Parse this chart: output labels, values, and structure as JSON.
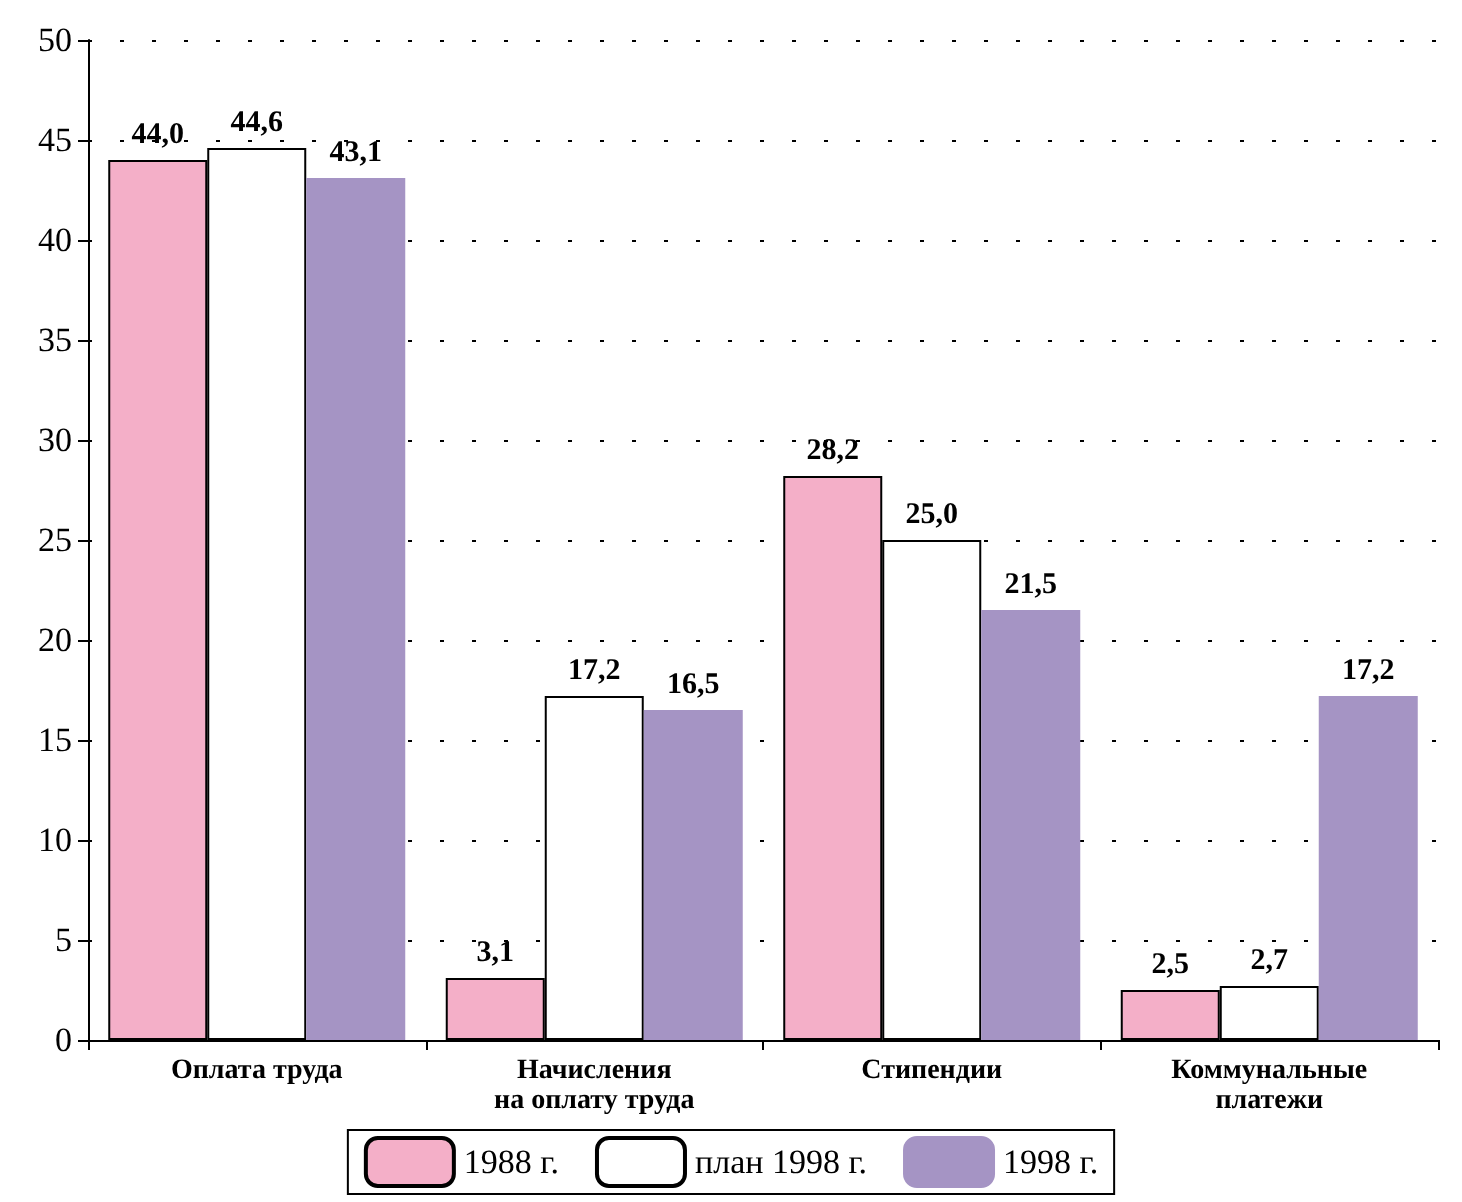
{
  "chart_data": {
    "type": "bar",
    "categories": [
      "Оплата труда",
      "Начисления\nна оплату труда",
      "Стипендии",
      "Коммунальные\nплатежи"
    ],
    "series": [
      {
        "name": "1988 г.",
        "color": "#f4afc8",
        "values": [
          44.0,
          3.1,
          28.2,
          2.5
        ],
        "value_labels": [
          "44,0",
          "3,1",
          "28,2",
          "2,5"
        ]
      },
      {
        "name": "план 1998 г.",
        "color": "#ffffff",
        "values": [
          44.6,
          17.2,
          25.0,
          2.7
        ],
        "value_labels": [
          "44,6",
          "17,2",
          "25,0",
          "2,7"
        ]
      },
      {
        "name": "1998 г.",
        "color": "#a594c4",
        "values": [
          43.1,
          16.5,
          21.5,
          17.2
        ],
        "value_labels": [
          "43,1",
          "16,5",
          "21,5",
          "17,2"
        ]
      }
    ],
    "ylim": [
      0,
      50
    ],
    "yticks": [
      0,
      5,
      10,
      15,
      20,
      25,
      30,
      35,
      40,
      45,
      50
    ],
    "grid": "y",
    "legend": "bottom"
  }
}
